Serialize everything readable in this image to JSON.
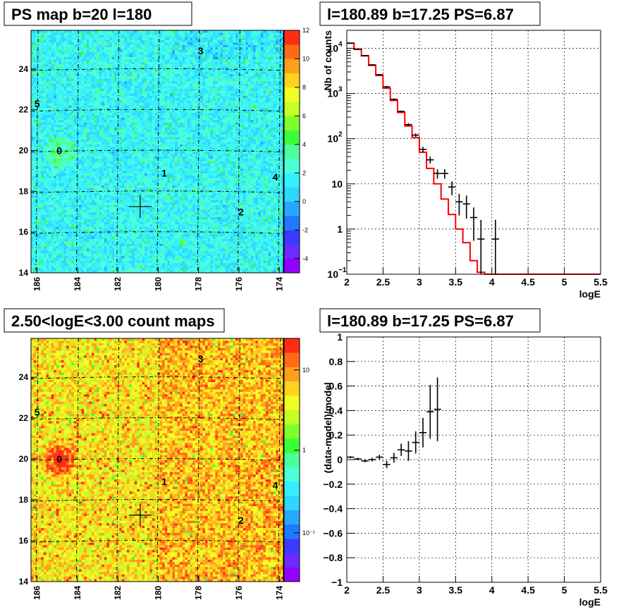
{
  "chart_data": [
    {
      "type": "heatmap",
      "title": "PS map b=20 l=180",
      "x_ticks": [
        "186",
        "184",
        "182",
        "180",
        "178",
        "176",
        "174"
      ],
      "y_ticks": [
        "14",
        "16",
        "18",
        "20",
        "22",
        "24"
      ],
      "xlim": [
        186.3,
        173.8
      ],
      "ylim": [
        14,
        25.9
      ],
      "colorbar": {
        "ticks": [
          "12",
          "10",
          "8",
          "6",
          "4",
          "2",
          "0",
          "-2",
          "-4"
        ],
        "range": [
          -5,
          12
        ],
        "palette": [
          "#9400ff",
          "#6a2cff",
          "#3b3bff",
          "#1f7aff",
          "#27a8ff",
          "#2fd6ff",
          "#33f0ff",
          "#4cffd9",
          "#4dff9a",
          "#3cff3c",
          "#80ff2a",
          "#c4ff26",
          "#f2ff22",
          "#ffd21f",
          "#ffa01c",
          "#ff6a19",
          "#ff2d14"
        ]
      },
      "sources": [
        {
          "label": "0",
          "l": 184.9,
          "b": 20.0
        },
        {
          "label": "1",
          "l": 179.7,
          "b": 18.9
        },
        {
          "label": "2",
          "l": 175.9,
          "b": 17.0
        },
        {
          "label": "3",
          "l": 177.9,
          "b": 24.9
        },
        {
          "label": "4",
          "l": 174.2,
          "b": 18.7
        },
        {
          "label": "5",
          "l": 186.0,
          "b": 22.3
        }
      ],
      "marker": {
        "l": 180.89,
        "b": 17.25
      }
    },
    {
      "type": "line",
      "title": "l=180.89 b=17.25 PS=6.87",
      "xlabel": "logE",
      "ylabel": "Nb of counts",
      "xlim": [
        2,
        5.5
      ],
      "ylim": [
        0.1,
        25000
      ],
      "yscale": "log",
      "x_ticks": [
        "2",
        "2.5",
        "3",
        "3.5",
        "4",
        "4.5",
        "5",
        "5.5"
      ],
      "y_ticks": [
        {
          "v": 0.1,
          "base": "10",
          "exp": "−1"
        },
        {
          "v": 1,
          "base": "1"
        },
        {
          "v": 10,
          "base": "10"
        },
        {
          "v": 100,
          "base": "10",
          "exp": "2"
        },
        {
          "v": 1000,
          "base": "10",
          "exp": "3"
        },
        {
          "v": 10000,
          "base": "10",
          "exp": "4"
        }
      ],
      "grid": true,
      "model": {
        "edges": [
          2,
          2.1,
          2.2,
          2.3,
          2.4,
          2.5,
          2.6,
          2.7,
          2.8,
          2.9,
          3.0,
          3.1,
          3.2,
          3.3,
          3.4,
          3.5,
          3.6,
          3.7,
          3.8,
          3.9,
          4.0,
          5.5
        ],
        "values": [
          13000,
          9500,
          6800,
          4200,
          2500,
          1300,
          700,
          380,
          190,
          105,
          50,
          22,
          10,
          4.6,
          2.1,
          1.0,
          0.5,
          0.2,
          0.11,
          0.1,
          0.1
        ]
      },
      "data_points": [
        {
          "x": 2.05,
          "y": 13000,
          "lo": 12800,
          "hi": 13200
        },
        {
          "x": 2.15,
          "y": 9500,
          "lo": 9300,
          "hi": 9700
        },
        {
          "x": 2.25,
          "y": 6900,
          "lo": 6700,
          "hi": 7100
        },
        {
          "x": 2.35,
          "y": 4300,
          "lo": 4150,
          "hi": 4450
        },
        {
          "x": 2.45,
          "y": 2600,
          "lo": 2500,
          "hi": 2700
        },
        {
          "x": 2.55,
          "y": 1400,
          "lo": 1330,
          "hi": 1470
        },
        {
          "x": 2.65,
          "y": 740,
          "lo": 700,
          "hi": 780
        },
        {
          "x": 2.75,
          "y": 400,
          "lo": 380,
          "hi": 420
        },
        {
          "x": 2.85,
          "y": 205,
          "lo": 190,
          "hi": 220
        },
        {
          "x": 2.95,
          "y": 120,
          "lo": 110,
          "hi": 131
        },
        {
          "x": 3.05,
          "y": 58,
          "lo": 50,
          "hi": 66
        },
        {
          "x": 3.15,
          "y": 34,
          "lo": 28,
          "hi": 40
        },
        {
          "x": 3.25,
          "y": 17,
          "lo": 13,
          "hi": 21
        },
        {
          "x": 3.35,
          "y": 17,
          "lo": 13,
          "hi": 21
        },
        {
          "x": 3.45,
          "y": 8.5,
          "lo": 5.6,
          "hi": 11.4
        },
        {
          "x": 3.55,
          "y": 4.0,
          "lo": 2.0,
          "hi": 6.0
        },
        {
          "x": 3.65,
          "y": 3.6,
          "lo": 1.7,
          "hi": 5.5
        },
        {
          "x": 3.75,
          "y": 1.8,
          "lo": 0.55,
          "hi": 3.0
        },
        {
          "x": 3.85,
          "y": 0.6,
          "lo": 0.1,
          "hi": 1.6
        },
        {
          "x": 4.05,
          "y": 0.6,
          "lo": 0.1,
          "hi": 1.6
        }
      ]
    },
    {
      "type": "heatmap",
      "title": "2.50<logE<3.00 count maps",
      "x_ticks": [
        "186",
        "184",
        "182",
        "180",
        "178",
        "176",
        "174"
      ],
      "y_ticks": [
        "14",
        "16",
        "18",
        "20",
        "22",
        "24"
      ],
      "xlim": [
        186.3,
        173.8
      ],
      "ylim": [
        14,
        25.9
      ],
      "colorbar": {
        "ticks": [
          "10",
          "1",
          "10⁻¹"
        ],
        "scale": "log",
        "palette": [
          "#9400ff",
          "#6a2cff",
          "#3b3bff",
          "#1f7aff",
          "#27a8ff",
          "#2fd6ff",
          "#33f0ff",
          "#4cffd9",
          "#4dff9a",
          "#3cff3c",
          "#80ff2a",
          "#c4ff26",
          "#f2ff22",
          "#ffd21f",
          "#ffa01c",
          "#ff6a19",
          "#ff2d14"
        ]
      },
      "sources": [
        {
          "label": "0",
          "l": 184.9,
          "b": 20.0
        },
        {
          "label": "1",
          "l": 179.7,
          "b": 18.9
        },
        {
          "label": "2",
          "l": 175.9,
          "b": 17.0
        },
        {
          "label": "3",
          "l": 177.9,
          "b": 24.9
        },
        {
          "label": "4",
          "l": 174.2,
          "b": 18.7
        },
        {
          "label": "5",
          "l": 186.0,
          "b": 22.3
        }
      ],
      "marker": {
        "l": 180.89,
        "b": 17.25
      }
    },
    {
      "type": "scatter",
      "title": "l=180.89 b=17.25 PS=6.87",
      "xlabel": "logE",
      "ylabel": "(data-model)/model",
      "xlim": [
        2,
        5.5
      ],
      "ylim": [
        -1,
        1
      ],
      "x_ticks": [
        "2",
        "2.5",
        "3",
        "3.5",
        "4",
        "4.5",
        "5",
        "5.5"
      ],
      "y_ticks": [
        "1",
        "0.8",
        "0.6",
        "0.4",
        "0.2",
        "0",
        "−0.2",
        "−0.4",
        "−0.6",
        "−0.8",
        "−1"
      ],
      "grid": true,
      "data_points": [
        {
          "x": 2.05,
          "y": 0.02,
          "err": 0.008
        },
        {
          "x": 2.15,
          "y": 0.005,
          "err": 0.01
        },
        {
          "x": 2.25,
          "y": -0.01,
          "err": 0.012
        },
        {
          "x": 2.35,
          "y": 0.0,
          "err": 0.015
        },
        {
          "x": 2.45,
          "y": 0.02,
          "err": 0.02
        },
        {
          "x": 2.55,
          "y": -0.04,
          "err": 0.03
        },
        {
          "x": 2.65,
          "y": 0.015,
          "err": 0.04
        },
        {
          "x": 2.75,
          "y": 0.08,
          "err": 0.05
        },
        {
          "x": 2.85,
          "y": 0.07,
          "err": 0.08
        },
        {
          "x": 2.95,
          "y": 0.14,
          "err": 0.09
        },
        {
          "x": 3.05,
          "y": 0.22,
          "err": 0.12
        },
        {
          "x": 3.15,
          "y": 0.39,
          "err": 0.22
        },
        {
          "x": 3.25,
          "y": 0.41,
          "err": 0.26
        }
      ]
    }
  ]
}
